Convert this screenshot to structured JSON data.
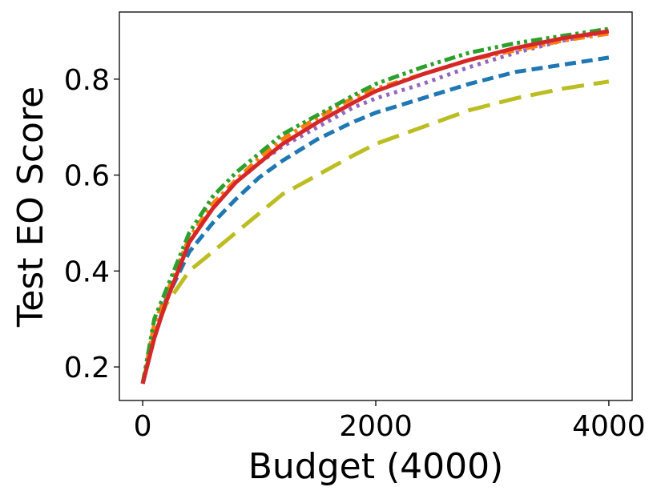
{
  "chart_data": {
    "type": "line",
    "title": "",
    "xlabel": "Budget (4000)",
    "ylabel": "Test EO Score",
    "xlim": [
      -200,
      4200
    ],
    "ylim": [
      0.13,
      0.94
    ],
    "xticks": [
      0,
      2000,
      4000
    ],
    "xtick_labels": [
      "0",
      "2000",
      "4000"
    ],
    "yticks": [
      0.2,
      0.4,
      0.6,
      0.8
    ],
    "ytick_labels": [
      "0.2",
      "0.4",
      "0.6",
      "0.8"
    ],
    "grid": false,
    "legend": "none",
    "x": [
      0,
      100,
      200,
      400,
      600,
      800,
      1000,
      1200,
      1500,
      1800,
      2000,
      2400,
      2800,
      3200,
      3600,
      4000
    ],
    "series": [
      {
        "color": "#bcbd22",
        "dash": "long-dash",
        "values": [
          0.165,
          0.27,
          0.33,
          0.4,
          0.44,
          0.48,
          0.52,
          0.56,
          0.6,
          0.64,
          0.665,
          0.7,
          0.735,
          0.76,
          0.78,
          0.795
        ]
      },
      {
        "color": "#1f77b4",
        "dash": "dash",
        "values": [
          0.165,
          0.26,
          0.34,
          0.44,
          0.5,
          0.55,
          0.595,
          0.63,
          0.675,
          0.71,
          0.73,
          0.76,
          0.79,
          0.815,
          0.83,
          0.845
        ]
      },
      {
        "color": "#9467bd",
        "dash": "dot",
        "values": [
          0.165,
          0.28,
          0.34,
          0.46,
          0.53,
          0.585,
          0.625,
          0.66,
          0.7,
          0.74,
          0.76,
          0.79,
          0.825,
          0.855,
          0.88,
          0.9
        ]
      },
      {
        "color": "#ff7f0e",
        "dash": "dash-dot",
        "values": [
          0.165,
          0.29,
          0.35,
          0.47,
          0.54,
          0.59,
          0.635,
          0.675,
          0.72,
          0.76,
          0.78,
          0.81,
          0.84,
          0.86,
          0.88,
          0.895
        ]
      },
      {
        "color": "#2ca02c",
        "dash": "dash-dot-dot",
        "values": [
          0.165,
          0.3,
          0.36,
          0.48,
          0.555,
          0.605,
          0.645,
          0.685,
          0.725,
          0.765,
          0.79,
          0.825,
          0.855,
          0.875,
          0.89,
          0.905
        ]
      },
      {
        "color": "#d62728",
        "dash": "solid",
        "values": [
          0.165,
          0.26,
          0.335,
          0.46,
          0.53,
          0.585,
          0.625,
          0.665,
          0.71,
          0.75,
          0.775,
          0.81,
          0.84,
          0.865,
          0.885,
          0.9
        ]
      }
    ]
  }
}
